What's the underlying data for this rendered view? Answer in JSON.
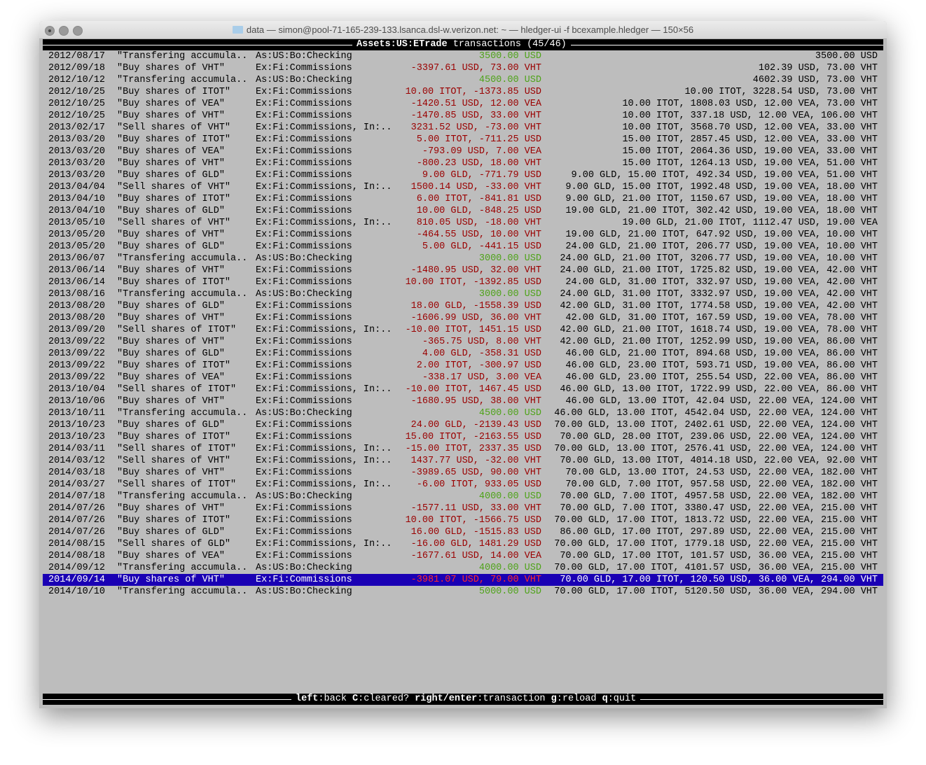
{
  "window": {
    "title": "data — simon@pool-71-165-239-133.lsanca.dsl-w.verizon.net: ~ — hledger-ui -f bcexample.hledger — 150×56"
  },
  "header": {
    "account": "Assets:US:ETrade",
    "label": "transactions",
    "position": "(45/46)"
  },
  "footer": {
    "keys": [
      {
        "key": "left",
        "action": "back"
      },
      {
        "key": "C",
        "action": "cleared?"
      },
      {
        "key": "right/enter",
        "action": "transaction"
      },
      {
        "key": "g",
        "action": "reload"
      },
      {
        "key": "q",
        "action": "quit"
      }
    ]
  },
  "colors": {
    "background": "#bdbdbd",
    "positive": "#4fa31a",
    "negative": "#9a0000",
    "selected_bg": "#1a00b4"
  },
  "selected_index": 44,
  "transactions": [
    [
      "2012/08/17",
      "\"Transfering accumula..",
      "As:US:Bo:Checking",
      "3500.00 USD",
      "3500.00 USD",
      "pos"
    ],
    [
      "2012/09/18",
      "\"Buy shares of VHT\"",
      "Ex:Fi:Commissions",
      "-3397.61 USD, 73.00 VHT",
      "102.39 USD, 73.00 VHT",
      "neg"
    ],
    [
      "2012/10/12",
      "\"Transfering accumula..",
      "As:US:Bo:Checking",
      "4500.00 USD",
      "4602.39 USD, 73.00 VHT",
      "pos"
    ],
    [
      "2012/10/25",
      "\"Buy shares of ITOT\"",
      "Ex:Fi:Commissions",
      "10.00 ITOT, -1373.85 USD",
      "10.00 ITOT, 3228.54 USD, 73.00 VHT",
      "neg"
    ],
    [
      "2012/10/25",
      "\"Buy shares of VEA\"",
      "Ex:Fi:Commissions",
      "-1420.51 USD, 12.00 VEA",
      "10.00 ITOT, 1808.03 USD, 12.00 VEA, 73.00 VHT",
      "neg"
    ],
    [
      "2012/10/25",
      "\"Buy shares of VHT\"",
      "Ex:Fi:Commissions",
      "-1470.85 USD, 33.00 VHT",
      "10.00 ITOT, 337.18 USD, 12.00 VEA, 106.00 VHT",
      "neg"
    ],
    [
      "2013/02/17",
      "\"Sell shares of VHT\"",
      "Ex:Fi:Commissions, In:..",
      "3231.52 USD, -73.00 VHT",
      "10.00 ITOT, 3568.70 USD, 12.00 VEA, 33.00 VHT",
      "neg"
    ],
    [
      "2013/03/20",
      "\"Buy shares of ITOT\"",
      "Ex:Fi:Commissions",
      "5.00 ITOT, -711.25 USD",
      "15.00 ITOT, 2857.45 USD, 12.00 VEA, 33.00 VHT",
      "neg"
    ],
    [
      "2013/03/20",
      "\"Buy shares of VEA\"",
      "Ex:Fi:Commissions",
      "-793.09 USD, 7.00 VEA",
      "15.00 ITOT, 2064.36 USD, 19.00 VEA, 33.00 VHT",
      "neg"
    ],
    [
      "2013/03/20",
      "\"Buy shares of VHT\"",
      "Ex:Fi:Commissions",
      "-800.23 USD, 18.00 VHT",
      "15.00 ITOT, 1264.13 USD, 19.00 VEA, 51.00 VHT",
      "neg"
    ],
    [
      "2013/03/20",
      "\"Buy shares of GLD\"",
      "Ex:Fi:Commissions",
      "9.00 GLD, -771.79 USD",
      "9.00 GLD, 15.00 ITOT, 492.34 USD, 19.00 VEA, 51.00 VHT",
      "neg"
    ],
    [
      "2013/04/04",
      "\"Sell shares of VHT\"",
      "Ex:Fi:Commissions, In:..",
      "1500.14 USD, -33.00 VHT",
      "9.00 GLD, 15.00 ITOT, 1992.48 USD, 19.00 VEA, 18.00 VHT",
      "neg"
    ],
    [
      "2013/04/10",
      "\"Buy shares of ITOT\"",
      "Ex:Fi:Commissions",
      "6.00 ITOT, -841.81 USD",
      "9.00 GLD, 21.00 ITOT, 1150.67 USD, 19.00 VEA, 18.00 VHT",
      "neg"
    ],
    [
      "2013/04/10",
      "\"Buy shares of GLD\"",
      "Ex:Fi:Commissions",
      "10.00 GLD, -848.25 USD",
      "19.00 GLD, 21.00 ITOT, 302.42 USD, 19.00 VEA, 18.00 VHT",
      "neg"
    ],
    [
      "2013/05/10",
      "\"Sell shares of VHT\"",
      "Ex:Fi:Commissions, In:..",
      "810.05 USD, -18.00 VHT",
      "19.00 GLD, 21.00 ITOT, 1112.47 USD, 19.00 VEA",
      "neg"
    ],
    [
      "2013/05/20",
      "\"Buy shares of VHT\"",
      "Ex:Fi:Commissions",
      "-464.55 USD, 10.00 VHT",
      "19.00 GLD, 21.00 ITOT, 647.92 USD, 19.00 VEA, 10.00 VHT",
      "neg"
    ],
    [
      "2013/05/20",
      "\"Buy shares of GLD\"",
      "Ex:Fi:Commissions",
      "5.00 GLD, -441.15 USD",
      "24.00 GLD, 21.00 ITOT, 206.77 USD, 19.00 VEA, 10.00 VHT",
      "neg"
    ],
    [
      "2013/06/07",
      "\"Transfering accumula..",
      "As:US:Bo:Checking",
      "3000.00 USD",
      "24.00 GLD, 21.00 ITOT, 3206.77 USD, 19.00 VEA, 10.00 VHT",
      "pos"
    ],
    [
      "2013/06/14",
      "\"Buy shares of VHT\"",
      "Ex:Fi:Commissions",
      "-1480.95 USD, 32.00 VHT",
      "24.00 GLD, 21.00 ITOT, 1725.82 USD, 19.00 VEA, 42.00 VHT",
      "neg"
    ],
    [
      "2013/06/14",
      "\"Buy shares of ITOT\"",
      "Ex:Fi:Commissions",
      "10.00 ITOT, -1392.85 USD",
      "24.00 GLD, 31.00 ITOT, 332.97 USD, 19.00 VEA, 42.00 VHT",
      "neg"
    ],
    [
      "2013/08/16",
      "\"Transfering accumula..",
      "As:US:Bo:Checking",
      "3000.00 USD",
      "24.00 GLD, 31.00 ITOT, 3332.97 USD, 19.00 VEA, 42.00 VHT",
      "pos"
    ],
    [
      "2013/08/20",
      "\"Buy shares of GLD\"",
      "Ex:Fi:Commissions",
      "18.00 GLD, -1558.39 USD",
      "42.00 GLD, 31.00 ITOT, 1774.58 USD, 19.00 VEA, 42.00 VHT",
      "neg"
    ],
    [
      "2013/08/20",
      "\"Buy shares of VHT\"",
      "Ex:Fi:Commissions",
      "-1606.99 USD, 36.00 VHT",
      "42.00 GLD, 31.00 ITOT, 167.59 USD, 19.00 VEA, 78.00 VHT",
      "neg"
    ],
    [
      "2013/09/20",
      "\"Sell shares of ITOT\"",
      "Ex:Fi:Commissions, In:..",
      "-10.00 ITOT, 1451.15 USD",
      "42.00 GLD, 21.00 ITOT, 1618.74 USD, 19.00 VEA, 78.00 VHT",
      "neg"
    ],
    [
      "2013/09/22",
      "\"Buy shares of VHT\"",
      "Ex:Fi:Commissions",
      "-365.75 USD, 8.00 VHT",
      "42.00 GLD, 21.00 ITOT, 1252.99 USD, 19.00 VEA, 86.00 VHT",
      "neg"
    ],
    [
      "2013/09/22",
      "\"Buy shares of GLD\"",
      "Ex:Fi:Commissions",
      "4.00 GLD, -358.31 USD",
      "46.00 GLD, 21.00 ITOT, 894.68 USD, 19.00 VEA, 86.00 VHT",
      "neg"
    ],
    [
      "2013/09/22",
      "\"Buy shares of ITOT\"",
      "Ex:Fi:Commissions",
      "2.00 ITOT, -300.97 USD",
      "46.00 GLD, 23.00 ITOT, 593.71 USD, 19.00 VEA, 86.00 VHT",
      "neg"
    ],
    [
      "2013/09/22",
      "\"Buy shares of VEA\"",
      "Ex:Fi:Commissions",
      "-338.17 USD, 3.00 VEA",
      "46.00 GLD, 23.00 ITOT, 255.54 USD, 22.00 VEA, 86.00 VHT",
      "neg"
    ],
    [
      "2013/10/04",
      "\"Sell shares of ITOT\"",
      "Ex:Fi:Commissions, In:..",
      "-10.00 ITOT, 1467.45 USD",
      "46.00 GLD, 13.00 ITOT, 1722.99 USD, 22.00 VEA, 86.00 VHT",
      "neg"
    ],
    [
      "2013/10/06",
      "\"Buy shares of VHT\"",
      "Ex:Fi:Commissions",
      "-1680.95 USD, 38.00 VHT",
      "46.00 GLD, 13.00 ITOT, 42.04 USD, 22.00 VEA, 124.00 VHT",
      "neg"
    ],
    [
      "2013/10/11",
      "\"Transfering accumula..",
      "As:US:Bo:Checking",
      "4500.00 USD",
      "46.00 GLD, 13.00 ITOT, 4542.04 USD, 22.00 VEA, 124.00 VHT",
      "pos"
    ],
    [
      "2013/10/23",
      "\"Buy shares of GLD\"",
      "Ex:Fi:Commissions",
      "24.00 GLD, -2139.43 USD",
      "70.00 GLD, 13.00 ITOT, 2402.61 USD, 22.00 VEA, 124.00 VHT",
      "neg"
    ],
    [
      "2013/10/23",
      "\"Buy shares of ITOT\"",
      "Ex:Fi:Commissions",
      "15.00 ITOT, -2163.55 USD",
      "70.00 GLD, 28.00 ITOT, 239.06 USD, 22.00 VEA, 124.00 VHT",
      "neg"
    ],
    [
      "2014/03/11",
      "\"Sell shares of ITOT\"",
      "Ex:Fi:Commissions, In:..",
      "-15.00 ITOT, 2337.35 USD",
      "70.00 GLD, 13.00 ITOT, 2576.41 USD, 22.00 VEA, 124.00 VHT",
      "neg"
    ],
    [
      "2014/03/12",
      "\"Sell shares of VHT\"",
      "Ex:Fi:Commissions, In:..",
      "1437.77 USD, -32.00 VHT",
      "70.00 GLD, 13.00 ITOT, 4014.18 USD, 22.00 VEA, 92.00 VHT",
      "neg"
    ],
    [
      "2014/03/18",
      "\"Buy shares of VHT\"",
      "Ex:Fi:Commissions",
      "-3989.65 USD, 90.00 VHT",
      "70.00 GLD, 13.00 ITOT, 24.53 USD, 22.00 VEA, 182.00 VHT",
      "neg"
    ],
    [
      "2014/03/27",
      "\"Sell shares of ITOT\"",
      "Ex:Fi:Commissions, In:..",
      "-6.00 ITOT, 933.05 USD",
      "70.00 GLD, 7.00 ITOT, 957.58 USD, 22.00 VEA, 182.00 VHT",
      "neg"
    ],
    [
      "2014/07/18",
      "\"Transfering accumula..",
      "As:US:Bo:Checking",
      "4000.00 USD",
      "70.00 GLD, 7.00 ITOT, 4957.58 USD, 22.00 VEA, 182.00 VHT",
      "pos"
    ],
    [
      "2014/07/26",
      "\"Buy shares of VHT\"",
      "Ex:Fi:Commissions",
      "-1577.11 USD, 33.00 VHT",
      "70.00 GLD, 7.00 ITOT, 3380.47 USD, 22.00 VEA, 215.00 VHT",
      "neg"
    ],
    [
      "2014/07/26",
      "\"Buy shares of ITOT\"",
      "Ex:Fi:Commissions",
      "10.00 ITOT, -1566.75 USD",
      "70.00 GLD, 17.00 ITOT, 1813.72 USD, 22.00 VEA, 215.00 VHT",
      "neg"
    ],
    [
      "2014/07/26",
      "\"Buy shares of GLD\"",
      "Ex:Fi:Commissions",
      "16.00 GLD, -1515.83 USD",
      "86.00 GLD, 17.00 ITOT, 297.89 USD, 22.00 VEA, 215.00 VHT",
      "neg"
    ],
    [
      "2014/08/15",
      "\"Sell shares of GLD\"",
      "Ex:Fi:Commissions, In:..",
      "-16.00 GLD, 1481.29 USD",
      "70.00 GLD, 17.00 ITOT, 1779.18 USD, 22.00 VEA, 215.00 VHT",
      "neg"
    ],
    [
      "2014/08/18",
      "\"Buy shares of VEA\"",
      "Ex:Fi:Commissions",
      "-1677.61 USD, 14.00 VEA",
      "70.00 GLD, 17.00 ITOT, 101.57 USD, 36.00 VEA, 215.00 VHT",
      "neg"
    ],
    [
      "2014/09/12",
      "\"Transfering accumula..",
      "As:US:Bo:Checking",
      "4000.00 USD",
      "70.00 GLD, 17.00 ITOT, 4101.57 USD, 36.00 VEA, 215.00 VHT",
      "pos"
    ],
    [
      "2014/09/14",
      "\"Buy shares of VHT\"",
      "Ex:Fi:Commissions",
      "-3981.07 USD, 79.00 VHT",
      "70.00 GLD, 17.00 ITOT, 120.50 USD, 36.00 VEA, 294.00 VHT",
      "neg"
    ],
    [
      "2014/10/10",
      "\"Transfering accumula..",
      "As:US:Bo:Checking",
      "5000.00 USD",
      "70.00 GLD, 17.00 ITOT, 5120.50 USD, 36.00 VEA, 294.00 VHT",
      "pos"
    ]
  ]
}
